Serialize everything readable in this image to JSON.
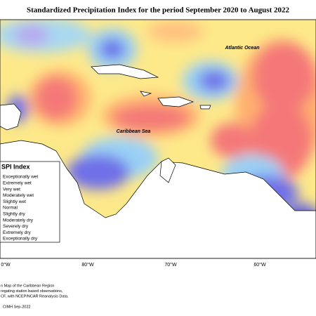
{
  "header": {
    "title": "Standardized Precipitation Index for the period September 2020 to August 2022"
  },
  "map": {
    "labels": [
      "Atlantic Ocean",
      "Caribbean Sea"
    ],
    "x_axis_labels": [
      "0°W",
      "80°W",
      "70°W",
      "60°W"
    ]
  },
  "legend": {
    "title": "SPI Index",
    "items": [
      "Exceptionally wet",
      "Extremely wet",
      "Very wet",
      "Moderately wet",
      "Slightly wet",
      "Normal",
      "Slightly dry",
      "Moderately dry",
      "Severely dry",
      "Extremely dry",
      "Exceptionally dry"
    ]
  },
  "footer": {
    "notes": [
      "n Map of the Caribbean Region",
      "regating station based observations,",
      "CF, with NCEP/NCAR Reanalysis Data."
    ],
    "credit": "CIMH Sep-2022"
  }
}
